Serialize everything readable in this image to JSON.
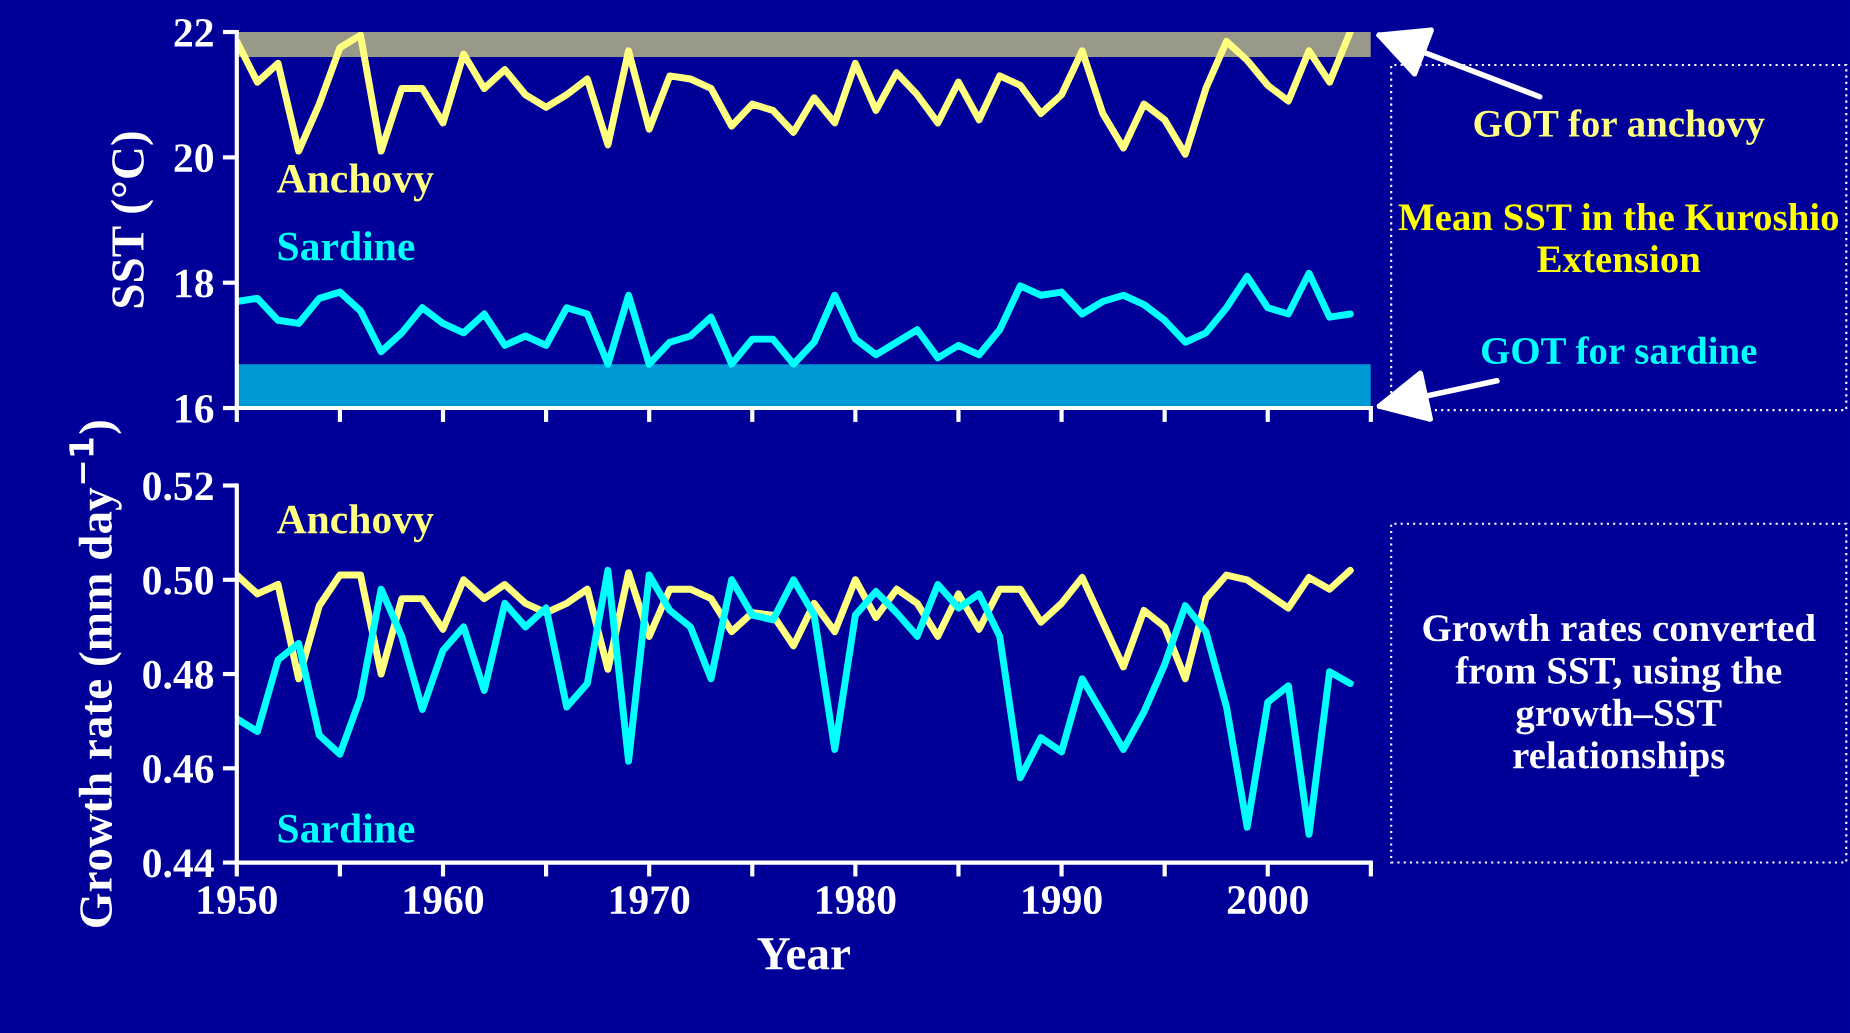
{
  "chart_data": [
    {
      "type": "line",
      "ylabel": "SST (°C)",
      "x": [
        1950,
        1951,
        1952,
        1953,
        1954,
        1955,
        1956,
        1957,
        1958,
        1959,
        1960,
        1961,
        1962,
        1963,
        1964,
        1965,
        1966,
        1967,
        1968,
        1969,
        1970,
        1971,
        1972,
        1973,
        1974,
        1975,
        1976,
        1977,
        1978,
        1979,
        1980,
        1981,
        1982,
        1983,
        1984,
        1985,
        1986,
        1987,
        1988,
        1989,
        1990,
        1991,
        1992,
        1993,
        1994,
        1995,
        1996,
        1997,
        1998,
        1999,
        2000,
        2001,
        2002,
        2003,
        2004
      ],
      "series": [
        {
          "name": "Anchovy",
          "color": "#ffff80",
          "values": [
            21.85,
            21.2,
            21.5,
            20.1,
            20.85,
            21.75,
            21.95,
            20.1,
            21.1,
            21.1,
            20.55,
            21.65,
            21.1,
            21.4,
            21.0,
            20.8,
            21.0,
            21.25,
            20.2,
            21.7,
            20.45,
            21.3,
            21.25,
            21.1,
            20.5,
            20.85,
            20.75,
            20.4,
            20.95,
            20.55,
            21.5,
            20.75,
            21.35,
            21.0,
            20.55,
            21.2,
            20.6,
            21.3,
            21.15,
            20.7,
            21.0,
            21.7,
            20.7,
            20.15,
            20.85,
            20.6,
            20.05,
            21.1,
            21.85,
            21.55,
            21.15,
            20.9,
            21.7,
            21.2,
            22.0
          ]
        },
        {
          "name": "Sardine",
          "color": "#00ffff",
          "values": [
            17.7,
            17.75,
            17.4,
            17.35,
            17.75,
            17.85,
            17.55,
            16.9,
            17.2,
            17.6,
            17.35,
            17.2,
            17.5,
            17.0,
            17.15,
            17.0,
            17.6,
            17.5,
            16.7,
            17.8,
            16.7,
            17.05,
            17.15,
            17.45,
            16.7,
            17.1,
            17.1,
            16.7,
            17.05,
            17.8,
            17.1,
            16.85,
            17.05,
            17.25,
            16.8,
            17.0,
            16.85,
            17.25,
            17.95,
            17.8,
            17.85,
            17.5,
            17.7,
            17.8,
            17.65,
            17.4,
            17.05,
            17.2,
            17.6,
            18.1,
            17.6,
            17.5,
            18.15,
            17.45,
            17.5
          ]
        }
      ],
      "xlim": [
        1950,
        2005
      ],
      "xticks": [
        {
          "value": 1950,
          "label": null
        },
        {
          "value": 1955,
          "label": null
        },
        {
          "value": 1960,
          "label": null
        },
        {
          "value": 1965,
          "label": null
        },
        {
          "value": 1970,
          "label": null
        },
        {
          "value": 1975,
          "label": null
        },
        {
          "value": 1980,
          "label": null
        },
        {
          "value": 1985,
          "label": null
        },
        {
          "value": 1990,
          "label": null
        },
        {
          "value": 1995,
          "label": null
        },
        {
          "value": 2000,
          "label": null
        },
        {
          "value": 2005,
          "label": null
        }
      ],
      "ylim": [
        16,
        22
      ],
      "yticks": [
        16,
        18,
        20,
        22
      ],
      "tick_labels": "y",
      "bands": [
        {
          "axis": "y",
          "from": 21.6,
          "to": 22,
          "label": "GOT for anchovy",
          "color": "#ffff80"
        },
        {
          "axis": "y",
          "from": 16,
          "to": 16.7,
          "label": "GOT for sardine",
          "color": "#00ffff"
        }
      ],
      "annotations": [
        "Mean SST in the Kuroshio Extension"
      ]
    },
    {
      "type": "line",
      "xlabel": "Year",
      "ylabel": "Growth rate (mm day$^{−1}$)",
      "x": [
        1950,
        1951,
        1952,
        1953,
        1954,
        1955,
        1956,
        1957,
        1958,
        1959,
        1960,
        1961,
        1962,
        1963,
        1964,
        1965,
        1966,
        1967,
        1968,
        1969,
        1970,
        1971,
        1972,
        1973,
        1974,
        1975,
        1976,
        1977,
        1978,
        1979,
        1980,
        1981,
        1982,
        1983,
        1984,
        1985,
        1986,
        1987,
        1988,
        1989,
        1990,
        1991,
        1992,
        1993,
        1994,
        1995,
        1996,
        1997,
        1998,
        1999,
        2000,
        2001,
        2002,
        2003,
        2004
      ],
      "series": [
        {
          "name": "Anchovy",
          "color": "#ffff80",
          "values": [
            0.501,
            0.497,
            0.499,
            0.479,
            0.4945,
            0.501,
            0.501,
            0.48,
            0.496,
            0.496,
            0.4895,
            0.5,
            0.496,
            0.499,
            0.495,
            0.493,
            0.495,
            0.498,
            0.481,
            0.5015,
            0.488,
            0.498,
            0.498,
            0.496,
            0.489,
            0.493,
            0.4925,
            0.486,
            0.495,
            0.489,
            0.5,
            0.492,
            0.498,
            0.495,
            0.488,
            0.497,
            0.4895,
            0.498,
            0.498,
            0.491,
            0.495,
            0.5005,
            0.491,
            0.4815,
            0.4935,
            0.49,
            0.479,
            0.496,
            0.501,
            0.5,
            0.497,
            0.494,
            0.5005,
            0.498,
            0.502
          ]
        },
        {
          "name": "Sardine",
          "color": "#00ffff",
          "values": [
            0.4705,
            0.4678,
            0.483,
            0.4865,
            0.467,
            0.463,
            0.475,
            0.498,
            0.488,
            0.4725,
            0.485,
            0.49,
            0.4765,
            0.495,
            0.49,
            0.494,
            0.473,
            0.478,
            0.502,
            0.4615,
            0.501,
            0.4935,
            0.49,
            0.479,
            0.5,
            0.4925,
            0.4915,
            0.5,
            0.4925,
            0.464,
            0.4925,
            0.4975,
            0.493,
            0.488,
            0.499,
            0.494,
            0.497,
            0.488,
            0.458,
            0.4665,
            0.4635,
            0.479,
            0.4715,
            0.464,
            0.472,
            0.482,
            0.4945,
            0.489,
            0.473,
            0.4475,
            0.474,
            0.4775,
            0.446,
            0.4805,
            0.478
          ]
        }
      ],
      "xlim": [
        1950,
        2005
      ],
      "xticks": [
        1950,
        1960,
        1970,
        1980,
        1990,
        2000,
        {
          "value": 1955,
          "label": null
        },
        {
          "value": 1965,
          "label": null
        },
        {
          "value": 1975,
          "label": null
        },
        {
          "value": 1985,
          "label": null
        },
        {
          "value": 1995,
          "label": null
        },
        {
          "value": 2005,
          "label": null
        }
      ],
      "ylim": [
        0.44,
        0.52
      ],
      "yticks": [
        0.44,
        0.46,
        0.48,
        {
          "value": 0.5,
          "label": "0.50"
        },
        0.52
      ],
      "annotations": [
        "Growth rates converted from SST, using the growth–SST relationships"
      ]
    }
  ]
}
